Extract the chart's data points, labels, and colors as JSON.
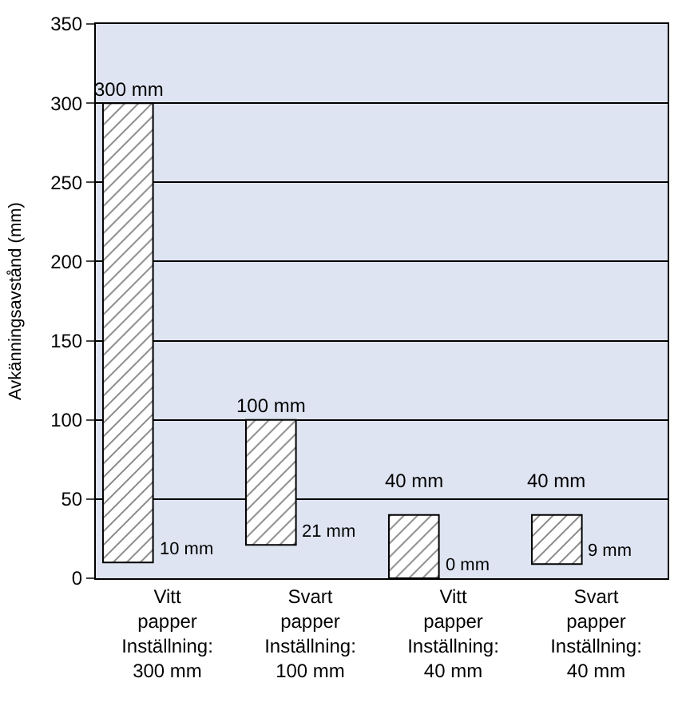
{
  "chart_data": {
    "type": "bar",
    "ylabel": "Avkänningsavstånd (mm)",
    "categories": [
      "Vitt\npapper\nInställning:\n300 mm",
      "Svart\npapper\nInställning:\n100 mm",
      "Vitt\npapper\nInställning:\n40 mm",
      "Svart\npapper\nInställning:\n40 mm"
    ],
    "base": [
      10,
      21,
      0,
      9
    ],
    "values": [
      290,
      79,
      40,
      31
    ],
    "color": "#000000",
    "ylim": [
      0,
      350
    ],
    "yticks": [
      0,
      50,
      100,
      150,
      200,
      250,
      300,
      350
    ],
    "grid": "y",
    "legend": false,
    "annotations": [
      "300 mm",
      "100 mm",
      "40 mm",
      "40 mm",
      "10 mm",
      "21 mm",
      "0 mm",
      "9 mm"
    ]
  }
}
